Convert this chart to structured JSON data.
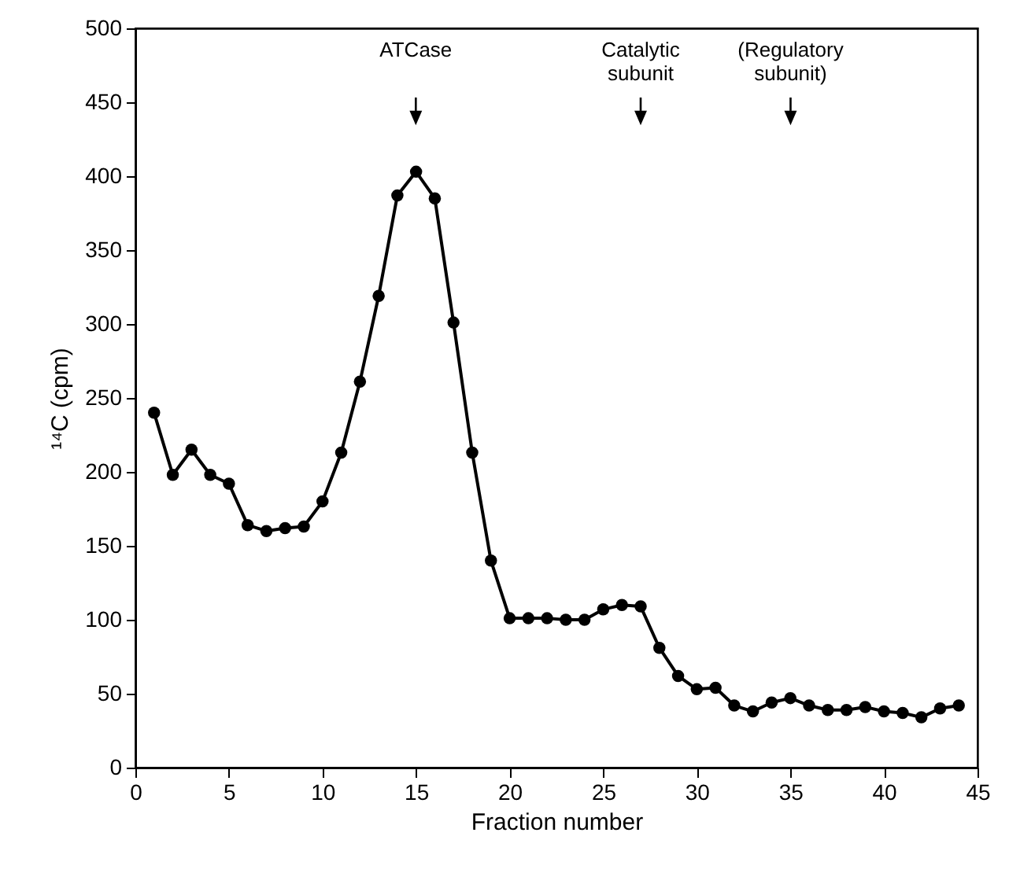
{
  "chart_data": {
    "type": "line",
    "xlabel": "Fraction number",
    "ylabel": "¹⁴C (cpm)",
    "x": [
      1,
      2,
      3,
      4,
      5,
      6,
      7,
      8,
      9,
      10,
      11,
      12,
      13,
      14,
      15,
      16,
      17,
      18,
      19,
      20,
      21,
      22,
      23,
      24,
      25,
      26,
      27,
      28,
      29,
      30,
      31,
      32,
      33,
      34,
      35,
      36,
      37,
      38,
      39,
      40,
      41,
      42,
      43,
      44
    ],
    "series": [
      {
        "color": "#000000",
        "values": [
          240,
          198,
          215,
          198,
          192,
          164,
          160,
          162,
          163,
          180,
          213,
          261,
          319,
          387,
          403,
          385,
          301,
          213,
          140,
          101,
          101,
          101,
          100,
          100,
          107,
          110,
          109,
          81,
          62,
          53,
          54,
          42,
          38,
          44,
          47,
          42,
          39,
          39,
          41,
          38,
          37,
          34,
          40,
          42
        ]
      }
    ],
    "xlim": [
      0,
      45
    ],
    "xticks": [
      0,
      5,
      10,
      15,
      20,
      25,
      30,
      35,
      40,
      45
    ],
    "ylim": [
      0,
      500
    ],
    "yticks": [
      0,
      50,
      100,
      150,
      200,
      250,
      300,
      350,
      400,
      450,
      500
    ],
    "marker": "circle",
    "line_style": "solid",
    "grid": false,
    "annotations": [
      "ATCase",
      "Catalytic subunit",
      "(Regulatory subunit)"
    ]
  }
}
